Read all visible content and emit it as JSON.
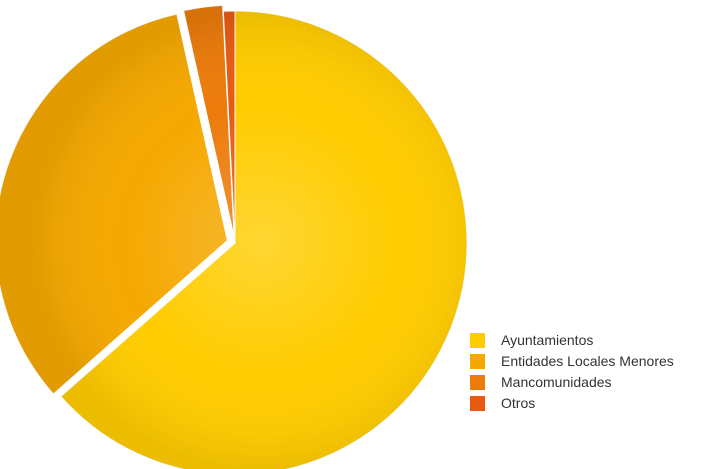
{
  "chart_data": {
    "type": "pie",
    "title": "",
    "categories": [
      "Ayuntamientos",
      "Entidades Locales Menores",
      "Mancomunidades",
      "Otros"
    ],
    "values": [
      63.5,
      33.0,
      2.7,
      0.8
    ],
    "colors": [
      "#ffcc00",
      "#f5a800",
      "#ec7b0a",
      "#e85a12"
    ],
    "legend_position": "bottom-right",
    "exploded": true
  }
}
